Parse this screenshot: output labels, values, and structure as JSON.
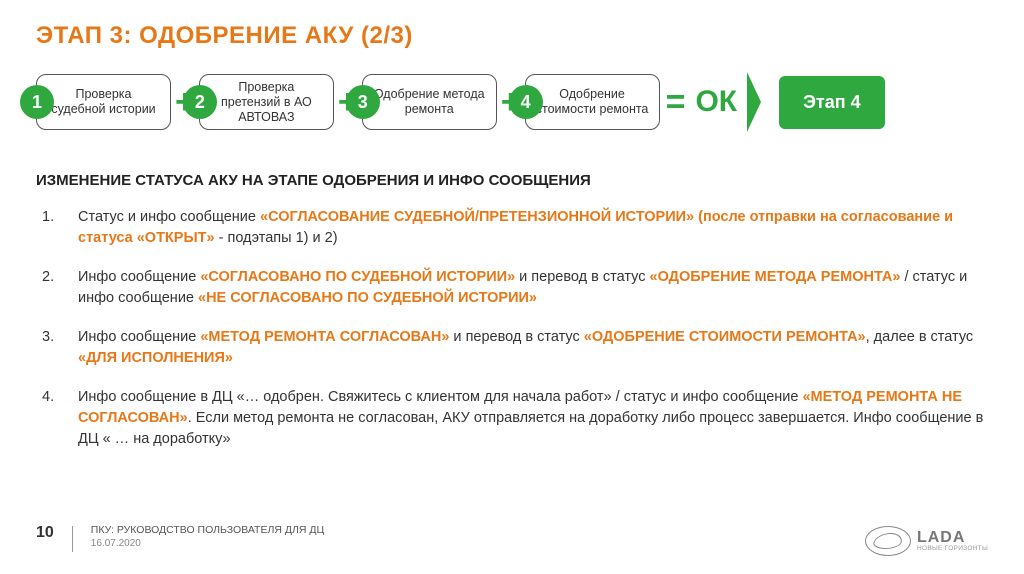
{
  "title": "ЭТАП 3: ОДОБРЕНИЕ АКУ (2/3)",
  "flow": {
    "steps": [
      {
        "n": "1",
        "label": "Проверка судебной истории"
      },
      {
        "n": "2",
        "label": "Проверка претензий в АО АВТОВАЗ"
      },
      {
        "n": "3",
        "label": "Одобрение метода ремонта"
      },
      {
        "n": "4",
        "label": "Одобрение стоимости ремонта"
      }
    ],
    "plus": "+",
    "eq": "=",
    "ok": "ОК",
    "next": "Этап 4",
    "colors": {
      "accent": "#2fa83f",
      "title": "#e77817",
      "box_border": "#555555"
    }
  },
  "section_title": "ИЗМЕНЕНИЕ СТАТУСА АКУ НА ЭТАПЕ ОДОБРЕНИЯ И ИНФО СООБЩЕНИЯ",
  "items": [
    {
      "n": "1.",
      "parts": [
        {
          "t": "Статус и инфо сообщение "
        },
        {
          "t": "«СОГЛАСОВАНИЕ СУДЕБНОЙ/ПРЕТЕНЗИОННОЙ ИСТОРИИ» (после отправки на согласование и статуса «ОТКРЫТ»",
          "hl": true
        },
        {
          "t": " - подэтапы 1) и 2)"
        }
      ]
    },
    {
      "n": "2.",
      "parts": [
        {
          "t": "Инфо сообщение "
        },
        {
          "t": "«СОГЛАСОВАНО ПО СУДЕБНОЙ ИСТОРИИ»",
          "hl": true
        },
        {
          "t": " и перевод в статус "
        },
        {
          "t": "«ОДОБРЕНИЕ МЕТОДА РЕМОНТА»",
          "hl": true
        },
        {
          "t": " / статус и инфо сообщение "
        },
        {
          "t": "«НЕ СОГЛАСОВАНО ПО СУДЕБНОЙ ИСТОРИИ»",
          "hl": true
        }
      ]
    },
    {
      "n": "3.",
      "parts": [
        {
          "t": "Инфо сообщение "
        },
        {
          "t": "«МЕТОД РЕМОНТА СОГЛАСОВАН»",
          "hl": true
        },
        {
          "t": " и перевод в статус "
        },
        {
          "t": "«ОДОБРЕНИЕ СТОИМОСТИ РЕМОНТА»",
          "hl": true
        },
        {
          "t": ", далее в статус "
        },
        {
          "t": "«ДЛЯ ИСПОЛНЕНИЯ»",
          "hl": true
        }
      ]
    },
    {
      "n": "4.",
      "parts": [
        {
          "t": "Инфо сообщение в ДЦ «… одобрен. Свяжитесь с клиентом для начала работ» / статус и инфо сообщение "
        },
        {
          "t": "«МЕТОД РЕМОНТА НЕ СОГЛАСОВАН»",
          "hl": true
        },
        {
          "t": ". Если метод ремонта не согласован, АКУ отправляется на доработку либо процесс завершается. Инфо сообщение в ДЦ « … на доработку»"
        }
      ]
    }
  ],
  "footer": {
    "page": "10",
    "doc": "ПКУ: РУКОВОДСТВО ПОЛЬЗОВАТЕЛЯ ДЛЯ ДЦ",
    "date": "16.07.2020",
    "logo_name": "LADA",
    "logo_sub": "НОВЫЕ ГОРИЗОНТЫ"
  }
}
